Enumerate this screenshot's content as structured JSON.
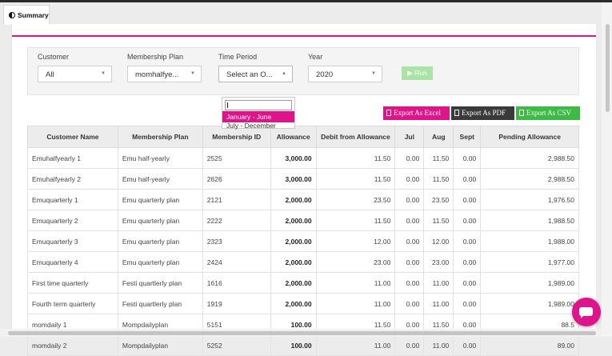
{
  "tab": {
    "label": "Summary"
  },
  "filters": {
    "customer": {
      "label": "Customer",
      "value": "All"
    },
    "plan": {
      "label": "Membership Plan",
      "value": "momhalfye..."
    },
    "period": {
      "label": "Time Period",
      "value": "Select an O..."
    },
    "year": {
      "label": "Year",
      "value": "2020"
    },
    "run_label": "▶ Run"
  },
  "dropdown": {
    "options": [
      {
        "label": "January - June",
        "selected": true
      },
      {
        "label": "July - December",
        "selected": false
      }
    ]
  },
  "exports": {
    "excel": "Export As Excel",
    "pdf": "Export As PDF",
    "csv": "Export As CSV",
    "colors": {
      "excel": "#e0148a",
      "pdf": "#3a3a3a",
      "csv": "#3dbb45"
    }
  },
  "table": {
    "headers": [
      "Customer Name",
      "Membership Plan",
      "Membership ID",
      "Allowance",
      "Debit from Allowance",
      "Jul",
      "Aug",
      "Sept",
      "Pending Allowance"
    ],
    "rows": [
      [
        "Emuhalfyearly 1",
        "Emu half-yearly",
        "2525",
        "3,000.00",
        "11.50",
        "0.00",
        "11.50",
        "0.00",
        "2,988.50"
      ],
      [
        "Emuhalfyearly 2",
        "Emu half-yearly",
        "2626",
        "3,000.00",
        "11.50",
        "0.00",
        "11.50",
        "0.00",
        "2,988.50"
      ],
      [
        "Emuquarterly 1",
        "Emu quarterly plan",
        "2121",
        "2,000.00",
        "23.50",
        "0.00",
        "23.50",
        "0.00",
        "1,976.50"
      ],
      [
        "Emuquarterly 2",
        "Emu quarterly plan",
        "2222",
        "2,000.00",
        "11.50",
        "0.00",
        "11.50",
        "0.00",
        "1,988.50"
      ],
      [
        "Emuquarterly 3",
        "Emu quarterly plan",
        "2323",
        "2,000.00",
        "12.00",
        "0.00",
        "12.00",
        "0.00",
        "1,988.00"
      ],
      [
        "Emuquarterly 4",
        "Emu quarterly plan",
        "2424",
        "2,000.00",
        "23.00",
        "0.00",
        "23.00",
        "0.00",
        "1,977.00"
      ],
      [
        "First time quarterly",
        "Festi quartlerly plan",
        "1616",
        "2,000.00",
        "11.00",
        "0.00",
        "11.00",
        "0.00",
        "1,989.00"
      ],
      [
        "Fourth term quarterly",
        "Festi quartlerly plan",
        "1919",
        "2,000.00",
        "11.00",
        "0.00",
        "11.00",
        "0.00",
        "1,989.00"
      ],
      [
        "momdaily 1",
        "Mompdailyplan",
        "5151",
        "100.00",
        "11.50",
        "0.00",
        "11.50",
        "0.00",
        "88.5"
      ],
      [
        "momdaily 2",
        "Mompdailyplan",
        "5252",
        "100.00",
        "11.00",
        "0.00",
        "11.00",
        "0.00",
        "89.00"
      ]
    ]
  }
}
